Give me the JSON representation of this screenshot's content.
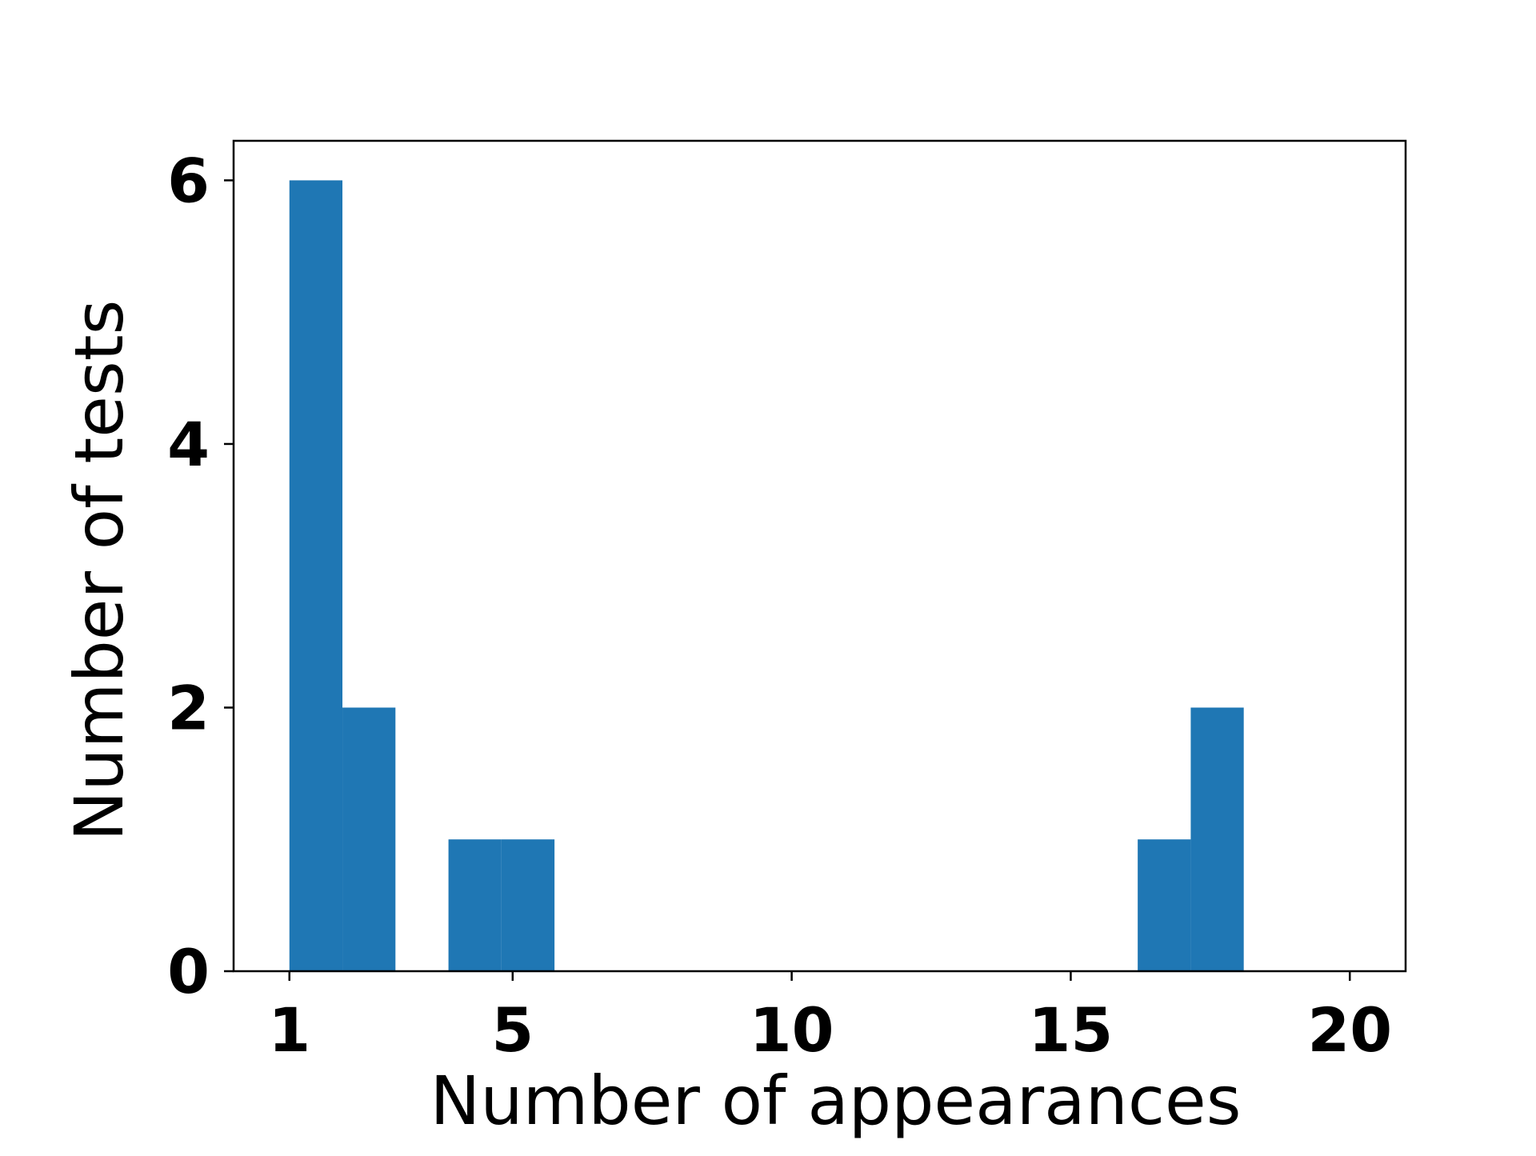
{
  "chart_data": {
    "type": "bar",
    "title": "",
    "xlabel": "Number of appearances",
    "ylabel": "Number of tests",
    "xlim": [
      0,
      21
    ],
    "ylim": [
      0,
      6.3
    ],
    "xticks": [
      1,
      5,
      10,
      15,
      20
    ],
    "xtick_labels": [
      "1",
      "5",
      "10",
      "15",
      "20"
    ],
    "yticks": [
      0,
      2,
      4,
      6
    ],
    "ytick_labels": [
      "0",
      "2",
      "4",
      "6"
    ],
    "bins": [
      {
        "x0": 1.0,
        "x1": 1.95,
        "count": 6
      },
      {
        "x0": 1.95,
        "x1": 2.9,
        "count": 2
      },
      {
        "x0": 3.85,
        "x1": 4.8,
        "count": 1
      },
      {
        "x0": 4.8,
        "x1": 5.75,
        "count": 1
      },
      {
        "x0": 16.2,
        "x1": 17.15,
        "count": 1
      },
      {
        "x0": 17.15,
        "x1": 18.1,
        "count": 2
      }
    ],
    "bar_color": "#1f77b4",
    "grid": false,
    "legend": false
  }
}
